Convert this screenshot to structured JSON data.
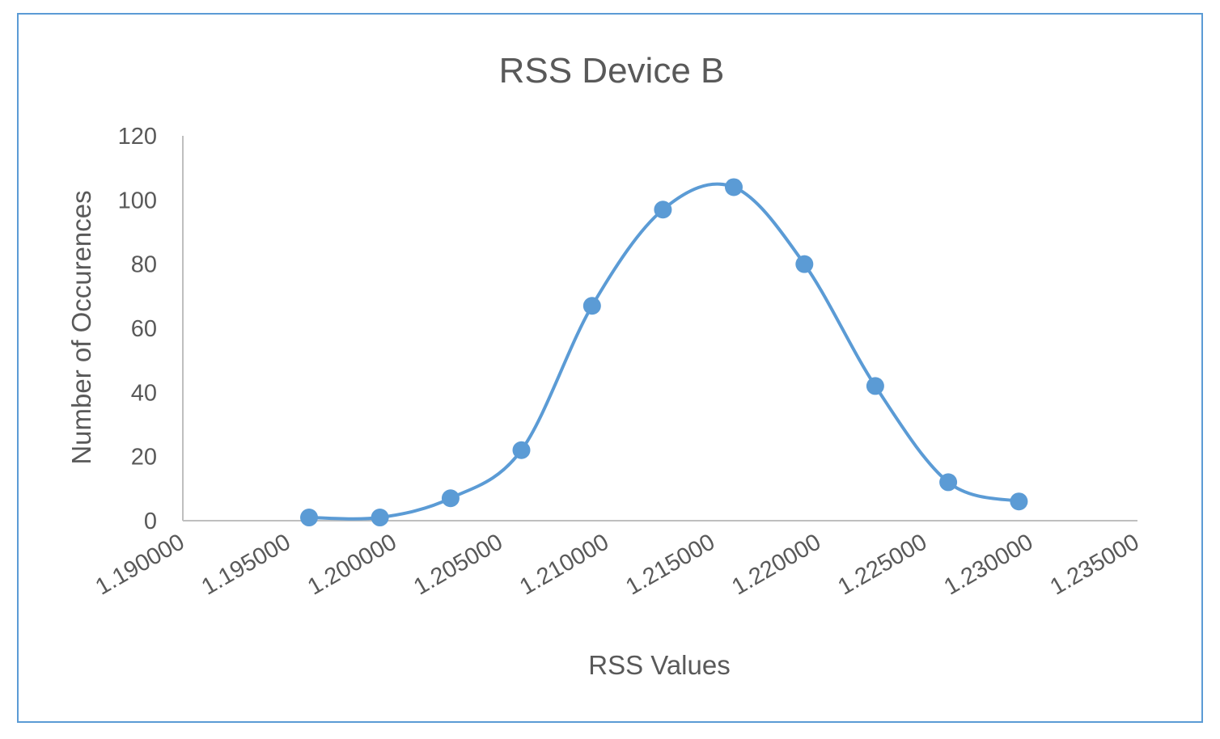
{
  "chart_data": {
    "type": "line",
    "title": "RSS Device B",
    "xlabel": "RSS Values",
    "ylabel": "Number of Occurences",
    "xlim": [
      1.19,
      1.235
    ],
    "ylim": [
      0,
      120
    ],
    "x_ticks": [
      "1.190000",
      "1.195000",
      "1.200000",
      "1.205000",
      "1.210000",
      "1.215000",
      "1.220000",
      "1.225000",
      "1.230000",
      "1.235000"
    ],
    "y_ticks": [
      "0",
      "20",
      "40",
      "60",
      "80",
      "100",
      "120"
    ],
    "smooth": true,
    "grid": false,
    "legend": "none",
    "series": [
      {
        "color": "#5b9bd5",
        "points": [
          {
            "x": 1.19595,
            "y": 1
          },
          {
            "x": 1.19929,
            "y": 1
          },
          {
            "x": 1.20262,
            "y": 7
          },
          {
            "x": 1.20596,
            "y": 22
          },
          {
            "x": 1.20929,
            "y": 67
          },
          {
            "x": 1.21263,
            "y": 97
          },
          {
            "x": 1.21597,
            "y": 104
          },
          {
            "x": 1.2193,
            "y": 80
          },
          {
            "x": 1.22264,
            "y": 42
          },
          {
            "x": 1.22608,
            "y": 12
          },
          {
            "x": 1.22941,
            "y": 6
          }
        ]
      }
    ]
  }
}
